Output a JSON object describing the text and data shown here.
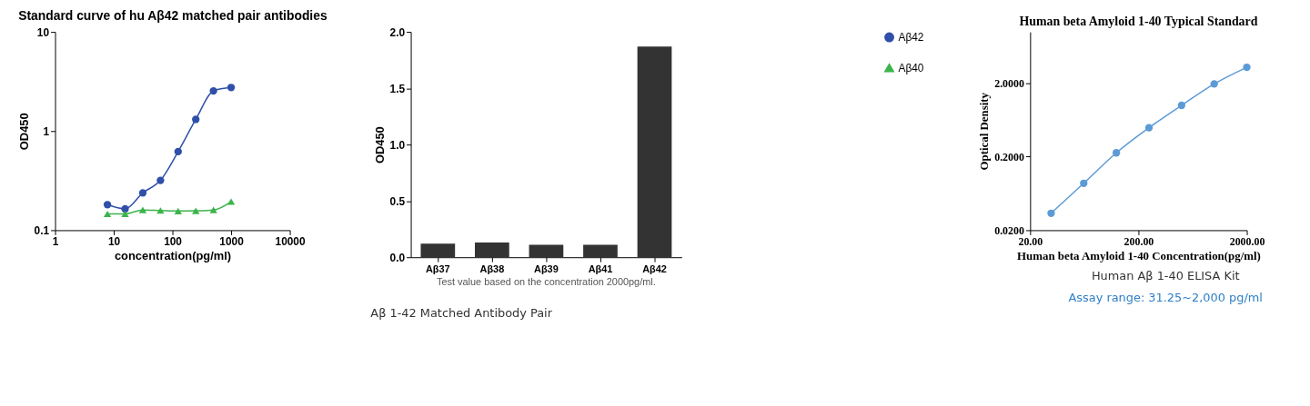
{
  "chart_data": [
    {
      "type": "line",
      "title": "Standard curve of hu Aβ42 matched pair antibodies",
      "xlabel": "concentration(pg/ml)",
      "ylabel": "OD450",
      "log": "xy",
      "xlim": [
        1,
        10000
      ],
      "xticks": [
        1,
        10,
        100,
        1000,
        10000
      ],
      "ylim": [
        0.1,
        10
      ],
      "yticks": [
        0.1,
        1,
        10
      ],
      "grid": false,
      "legend": "top right",
      "x": [
        7.8,
        15.6,
        31.25,
        62.5,
        125,
        250,
        500,
        1000
      ],
      "series": [
        {
          "name": "Aβ42",
          "color": "#2f4fa8",
          "marker": "circle",
          "values": [
            0.181,
            0.164,
            0.238,
            0.318,
            0.62,
            1.31,
            2.54,
            2.75
          ]
        },
        {
          "name": "Aβ40",
          "color": "#3cb44b",
          "marker": "triangle",
          "values": [
            0.146,
            0.146,
            0.16,
            0.158,
            0.156,
            0.157,
            0.16,
            0.194
          ]
        }
      ]
    },
    {
      "type": "bar",
      "ylabel": "OD450",
      "categories": [
        "Aβ37",
        "Aβ38",
        "Aβ39",
        "Aβ41",
        "Aβ42"
      ],
      "values": [
        0.12,
        0.13,
        0.11,
        0.11,
        1.87
      ],
      "color": "#333333",
      "ylim": [
        0,
        2
      ],
      "yticks": [
        {
          "value": 0,
          "label": "0.0"
        },
        {
          "value": 0.5,
          "label": "0.5"
        },
        {
          "value": 1,
          "label": "1.0"
        },
        {
          "value": 1.5,
          "label": "1.5"
        },
        {
          "value": 2,
          "label": "2.0"
        }
      ],
      "grid": false,
      "annotations": [
        "Test value based on the concentration 2000pg/ml.",
        "Aβ 1-42 Matched Antibody Pair"
      ]
    },
    {
      "type": "line",
      "title": "Human beta Amyloid 1-40 Typical Standard",
      "xlabel": "Human beta Amyloid 1-40 Concentration(pg/ml)",
      "ylabel": "Optical Density",
      "log": "xy",
      "grid": false,
      "marker": "circle",
      "xlim": [
        20,
        2000
      ],
      "xticks": [
        {
          "value": 20,
          "label": "20.00"
        },
        {
          "value": 200,
          "label": "200.00"
        },
        {
          "value": 2000,
          "label": "2000.00"
        }
      ],
      "ylim": [
        0.02,
        10
      ],
      "yticks": [
        {
          "value": 0.02,
          "label": "0.0200"
        },
        {
          "value": 0.2,
          "label": "0.2000"
        },
        {
          "value": 2,
          "label": "2.0000"
        }
      ],
      "x": [
        31.25,
        62.5,
        125,
        250,
        500,
        1000,
        2000
      ],
      "values": [
        0.034,
        0.087,
        0.226,
        0.496,
        1.0,
        1.96,
        3.3
      ],
      "color": "#5b9bd5",
      "annotations": [
        "Human Aβ 1-40 ELISA Kit",
        "Assay range: 31.25~2,000 pg/ml"
      ]
    }
  ]
}
